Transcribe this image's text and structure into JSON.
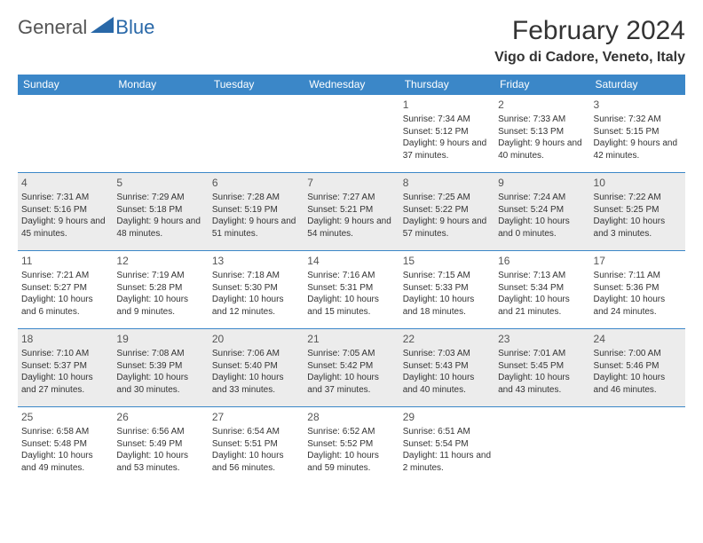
{
  "logo": {
    "general": "General",
    "blue": "Blue"
  },
  "title": "February 2024",
  "location": "Vigo di Cadore, Veneto, Italy",
  "colors": {
    "header_bg": "#3b87c8",
    "header_text": "#ffffff",
    "border": "#3b87c8",
    "shaded_row": "#ececec",
    "text": "#333333",
    "logo_gray": "#555555",
    "logo_blue": "#2968a8"
  },
  "day_headers": [
    "Sunday",
    "Monday",
    "Tuesday",
    "Wednesday",
    "Thursday",
    "Friday",
    "Saturday"
  ],
  "weeks": [
    {
      "shaded": false,
      "days": [
        null,
        null,
        null,
        null,
        {
          "n": "1",
          "sr": "7:34 AM",
          "ss": "5:12 PM",
          "dl": "9 hours and 37 minutes."
        },
        {
          "n": "2",
          "sr": "7:33 AM",
          "ss": "5:13 PM",
          "dl": "9 hours and 40 minutes."
        },
        {
          "n": "3",
          "sr": "7:32 AM",
          "ss": "5:15 PM",
          "dl": "9 hours and 42 minutes."
        }
      ]
    },
    {
      "shaded": true,
      "days": [
        {
          "n": "4",
          "sr": "7:31 AM",
          "ss": "5:16 PM",
          "dl": "9 hours and 45 minutes."
        },
        {
          "n": "5",
          "sr": "7:29 AM",
          "ss": "5:18 PM",
          "dl": "9 hours and 48 minutes."
        },
        {
          "n": "6",
          "sr": "7:28 AM",
          "ss": "5:19 PM",
          "dl": "9 hours and 51 minutes."
        },
        {
          "n": "7",
          "sr": "7:27 AM",
          "ss": "5:21 PM",
          "dl": "9 hours and 54 minutes."
        },
        {
          "n": "8",
          "sr": "7:25 AM",
          "ss": "5:22 PM",
          "dl": "9 hours and 57 minutes."
        },
        {
          "n": "9",
          "sr": "7:24 AM",
          "ss": "5:24 PM",
          "dl": "10 hours and 0 minutes."
        },
        {
          "n": "10",
          "sr": "7:22 AM",
          "ss": "5:25 PM",
          "dl": "10 hours and 3 minutes."
        }
      ]
    },
    {
      "shaded": false,
      "days": [
        {
          "n": "11",
          "sr": "7:21 AM",
          "ss": "5:27 PM",
          "dl": "10 hours and 6 minutes."
        },
        {
          "n": "12",
          "sr": "7:19 AM",
          "ss": "5:28 PM",
          "dl": "10 hours and 9 minutes."
        },
        {
          "n": "13",
          "sr": "7:18 AM",
          "ss": "5:30 PM",
          "dl": "10 hours and 12 minutes."
        },
        {
          "n": "14",
          "sr": "7:16 AM",
          "ss": "5:31 PM",
          "dl": "10 hours and 15 minutes."
        },
        {
          "n": "15",
          "sr": "7:15 AM",
          "ss": "5:33 PM",
          "dl": "10 hours and 18 minutes."
        },
        {
          "n": "16",
          "sr": "7:13 AM",
          "ss": "5:34 PM",
          "dl": "10 hours and 21 minutes."
        },
        {
          "n": "17",
          "sr": "7:11 AM",
          "ss": "5:36 PM",
          "dl": "10 hours and 24 minutes."
        }
      ]
    },
    {
      "shaded": true,
      "days": [
        {
          "n": "18",
          "sr": "7:10 AM",
          "ss": "5:37 PM",
          "dl": "10 hours and 27 minutes."
        },
        {
          "n": "19",
          "sr": "7:08 AM",
          "ss": "5:39 PM",
          "dl": "10 hours and 30 minutes."
        },
        {
          "n": "20",
          "sr": "7:06 AM",
          "ss": "5:40 PM",
          "dl": "10 hours and 33 minutes."
        },
        {
          "n": "21",
          "sr": "7:05 AM",
          "ss": "5:42 PM",
          "dl": "10 hours and 37 minutes."
        },
        {
          "n": "22",
          "sr": "7:03 AM",
          "ss": "5:43 PM",
          "dl": "10 hours and 40 minutes."
        },
        {
          "n": "23",
          "sr": "7:01 AM",
          "ss": "5:45 PM",
          "dl": "10 hours and 43 minutes."
        },
        {
          "n": "24",
          "sr": "7:00 AM",
          "ss": "5:46 PM",
          "dl": "10 hours and 46 minutes."
        }
      ]
    },
    {
      "shaded": false,
      "days": [
        {
          "n": "25",
          "sr": "6:58 AM",
          "ss": "5:48 PM",
          "dl": "10 hours and 49 minutes."
        },
        {
          "n": "26",
          "sr": "6:56 AM",
          "ss": "5:49 PM",
          "dl": "10 hours and 53 minutes."
        },
        {
          "n": "27",
          "sr": "6:54 AM",
          "ss": "5:51 PM",
          "dl": "10 hours and 56 minutes."
        },
        {
          "n": "28",
          "sr": "6:52 AM",
          "ss": "5:52 PM",
          "dl": "10 hours and 59 minutes."
        },
        {
          "n": "29",
          "sr": "6:51 AM",
          "ss": "5:54 PM",
          "dl": "11 hours and 2 minutes."
        },
        null,
        null
      ]
    }
  ],
  "labels": {
    "sunrise": "Sunrise: ",
    "sunset": "Sunset: ",
    "daylight": "Daylight: "
  }
}
